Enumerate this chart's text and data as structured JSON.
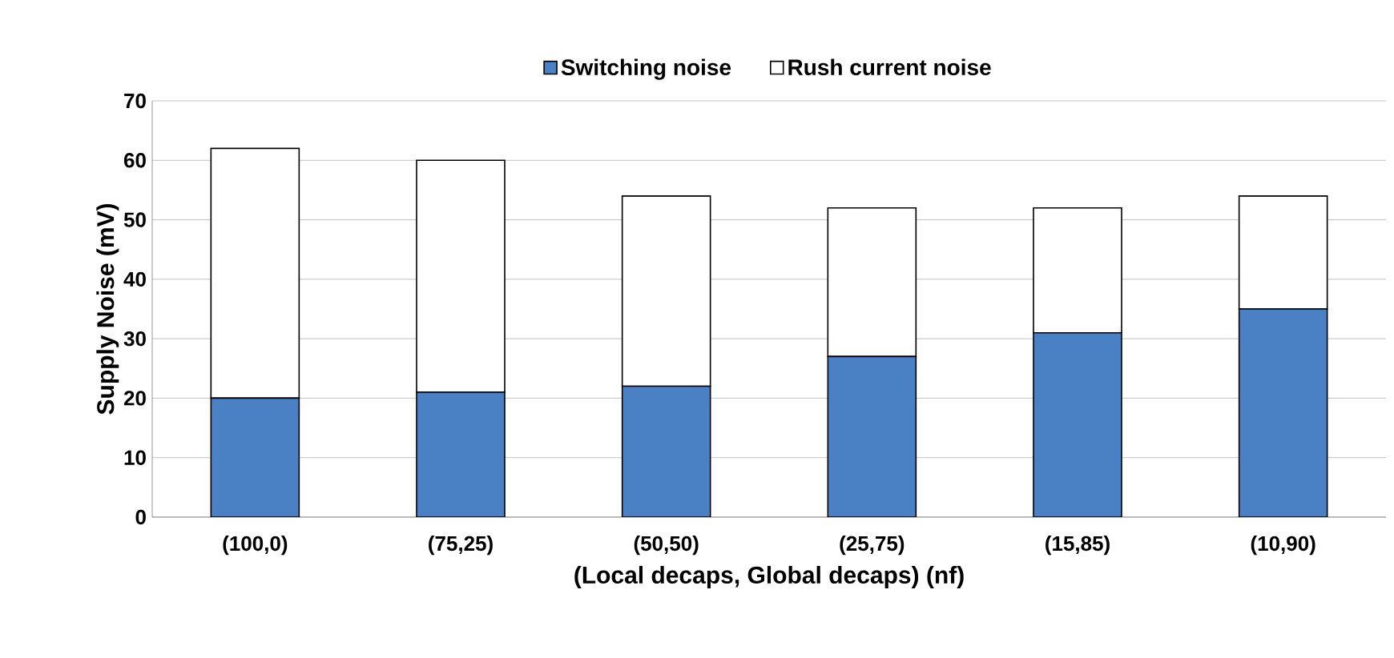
{
  "chart_data": {
    "type": "bar",
    "stacked": true,
    "xlabel": "(Local decaps, Global decaps) (nf)",
    "ylabel": "Supply Noise (mV)",
    "categories": [
      "(100,0)",
      "(75,25)",
      "(50,50)",
      "(25,75)",
      "(15,85)",
      "(10,90)"
    ],
    "series": [
      {
        "name": "Switching noise",
        "color": "#4a81c4",
        "values": [
          20,
          21,
          22,
          27,
          31,
          35
        ]
      },
      {
        "name": "Rush current noise",
        "color": "#ffffff",
        "values": [
          42,
          39,
          32,
          25,
          21,
          19
        ]
      }
    ],
    "ylim": [
      0,
      70
    ],
    "yticks": [
      0,
      10,
      20,
      30,
      40,
      50,
      60,
      70
    ],
    "grid": "y",
    "legend": "top"
  }
}
